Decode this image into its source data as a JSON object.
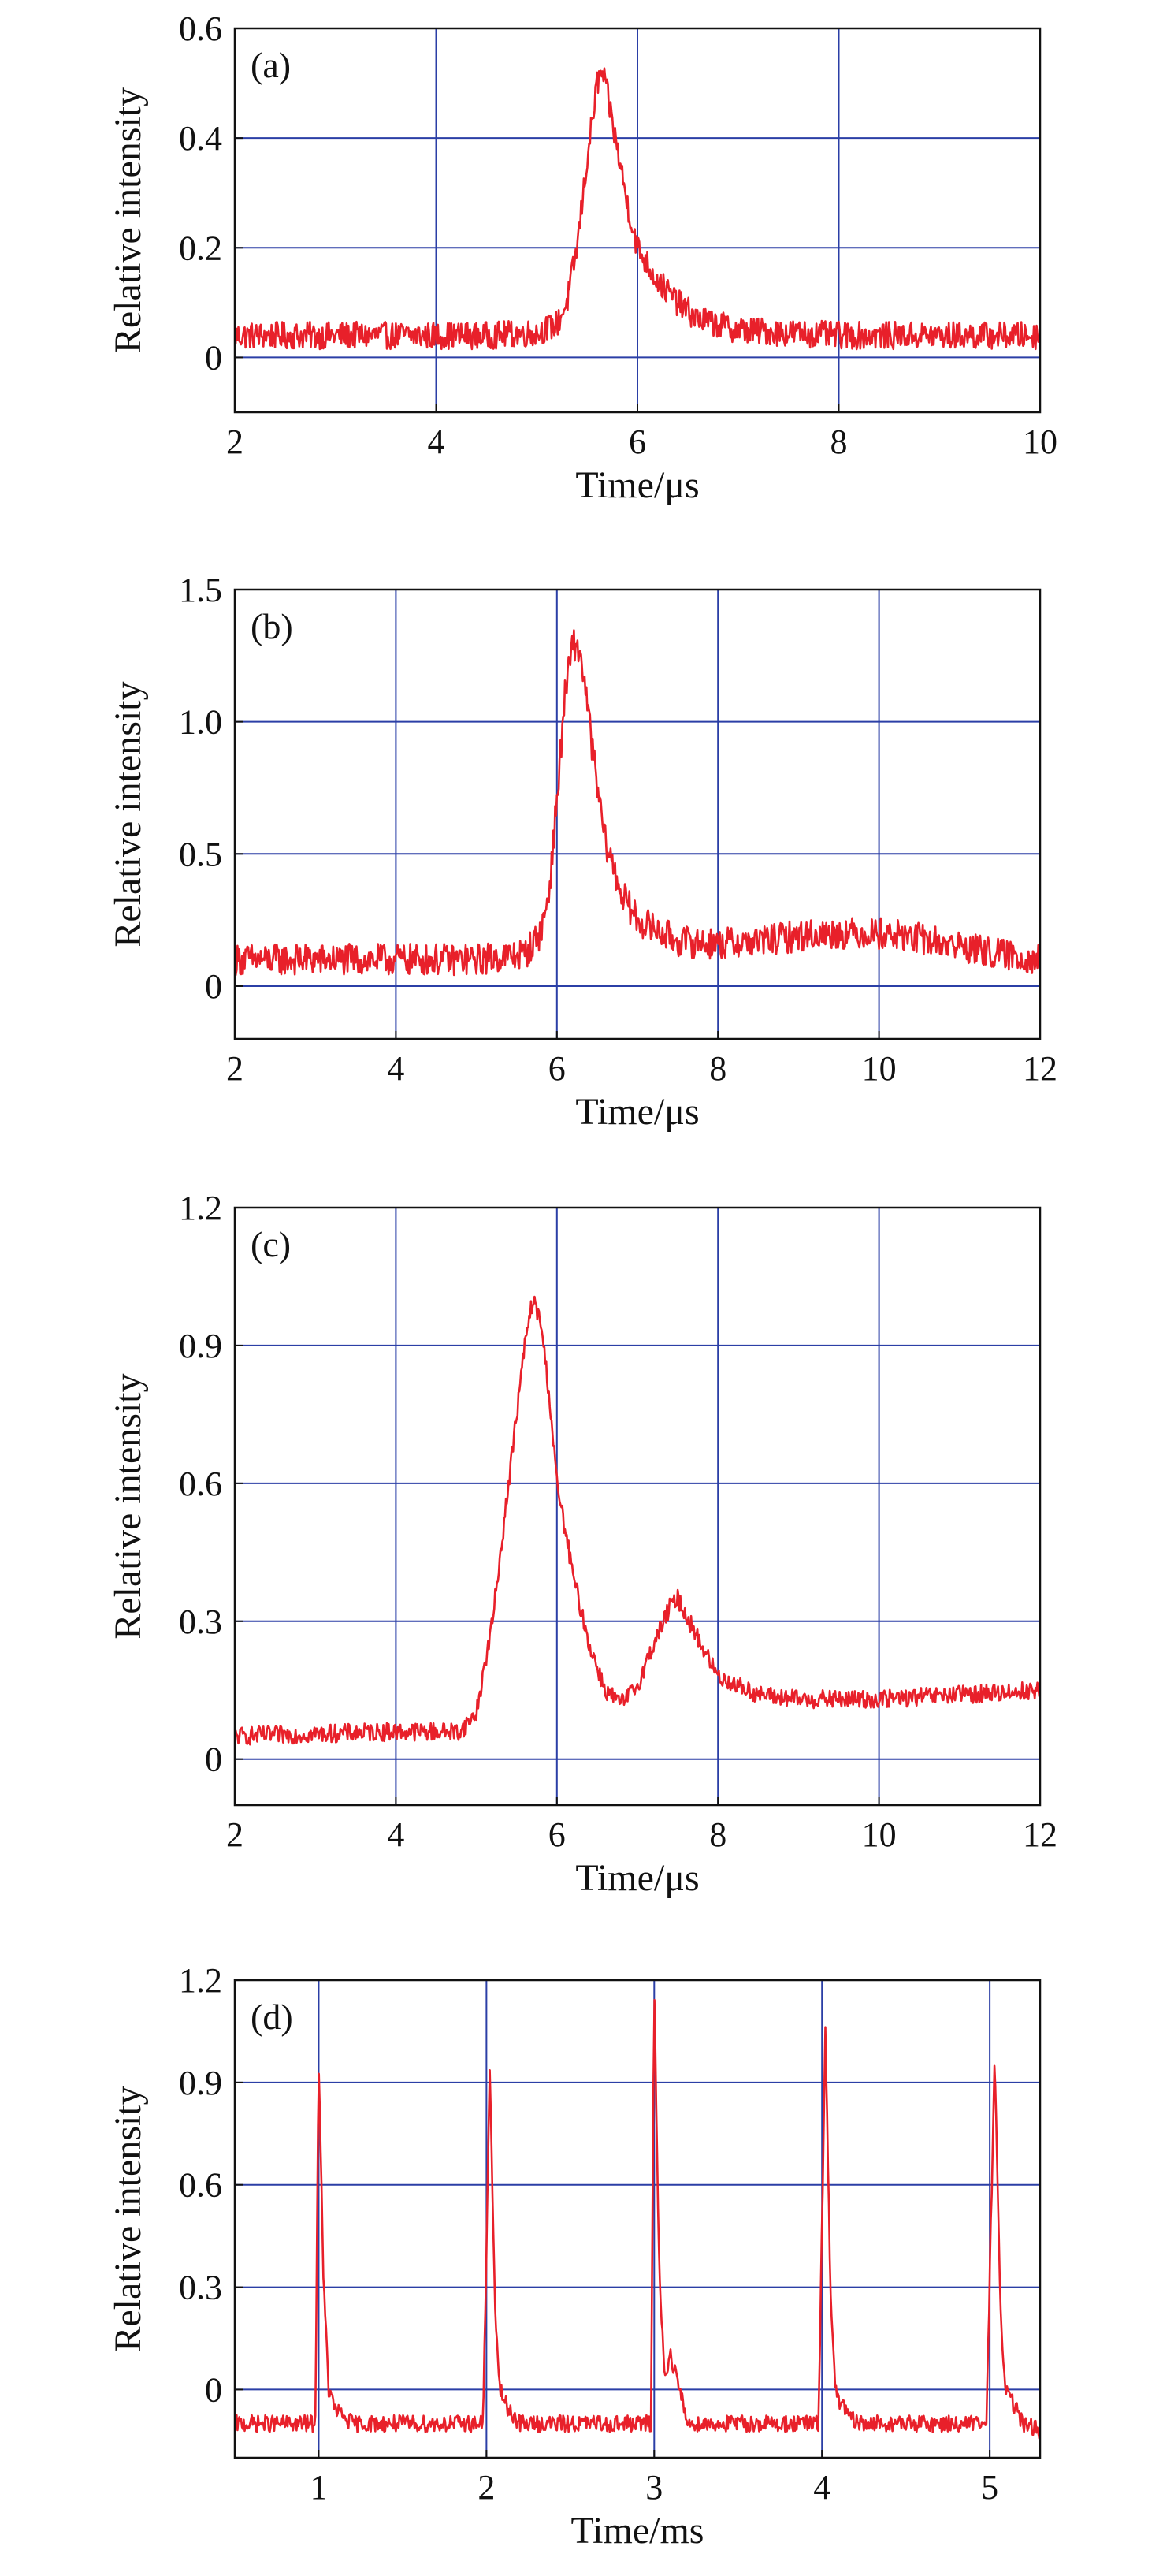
{
  "chart_data": [
    {
      "type": "line",
      "panel_label": "(a)",
      "xlabel": "Time/μs",
      "ylabel": "Relative intensity",
      "xlim": [
        2,
        10
      ],
      "ylim": [
        -0.1,
        0.6
      ],
      "xticks": [
        2,
        4,
        6,
        8,
        10
      ],
      "xtick_labels": [
        "2",
        "4",
        "6",
        "8",
        "10"
      ],
      "yticks": [
        0,
        0.2,
        0.4,
        0.6
      ],
      "ytick_labels": [
        "0",
        "0.2",
        "0.4",
        "0.6"
      ],
      "grid": true,
      "series": [
        {
          "color": "#e8202a",
          "x": [
            2.0,
            2.5,
            3.0,
            3.5,
            4.0,
            4.5,
            5.0,
            5.2,
            5.3,
            5.4,
            5.5,
            5.6,
            5.65,
            5.7,
            5.8,
            5.9,
            6.0,
            6.2,
            6.4,
            6.6,
            6.8,
            7.0,
            7.5,
            8.0,
            8.5,
            9.0,
            9.5,
            10.0
          ],
          "values": [
            0.04,
            0.04,
            0.04,
            0.04,
            0.04,
            0.04,
            0.045,
            0.06,
            0.1,
            0.2,
            0.36,
            0.5,
            0.52,
            0.48,
            0.38,
            0.28,
            0.2,
            0.14,
            0.1,
            0.07,
            0.06,
            0.05,
            0.045,
            0.04,
            0.04,
            0.04,
            0.04,
            0.04
          ],
          "noise": 0.025
        }
      ]
    },
    {
      "type": "line",
      "panel_label": "(b)",
      "xlabel": "Time/μs",
      "ylabel": "Relative intensity",
      "xlim": [
        2,
        12
      ],
      "ylim": [
        -0.2,
        1.5
      ],
      "xticks": [
        2,
        4,
        6,
        8,
        10,
        12
      ],
      "xtick_labels": [
        "2",
        "4",
        "6",
        "8",
        "10",
        "12"
      ],
      "yticks": [
        0,
        0.5,
        1.0,
        1.5
      ],
      "ytick_labels": [
        "0",
        "0.5",
        "1.0",
        "1.5"
      ],
      "grid": true,
      "series": [
        {
          "color": "#e8202a",
          "x": [
            2.0,
            3.0,
            4.0,
            5.0,
            5.6,
            5.8,
            5.9,
            6.0,
            6.1,
            6.2,
            6.3,
            6.4,
            6.5,
            6.6,
            6.8,
            7.0,
            7.5,
            8.0,
            8.5,
            9.0,
            9.5,
            10.0,
            10.5,
            11.0,
            11.5,
            12.0
          ],
          "values": [
            0.1,
            0.1,
            0.1,
            0.1,
            0.12,
            0.2,
            0.35,
            0.7,
            1.1,
            1.3,
            1.25,
            1.0,
            0.75,
            0.55,
            0.35,
            0.25,
            0.17,
            0.16,
            0.17,
            0.19,
            0.2,
            0.2,
            0.18,
            0.15,
            0.12,
            0.1
          ],
          "noise": 0.06
        }
      ]
    },
    {
      "type": "line",
      "panel_label": "(c)",
      "xlabel": "Time/μs",
      "ylabel": "Relative intensity",
      "xlim": [
        2,
        12
      ],
      "ylim": [
        -0.1,
        1.2
      ],
      "xticks": [
        2,
        4,
        6,
        8,
        10,
        12
      ],
      "xtick_labels": [
        "2",
        "4",
        "6",
        "8",
        "10",
        "12"
      ],
      "yticks": [
        0,
        0.3,
        0.6,
        0.9,
        1.2
      ],
      "ytick_labels": [
        "0",
        "0.3",
        "0.6",
        "0.9",
        "1.2"
      ],
      "grid": true,
      "series": [
        {
          "color": "#e8202a",
          "x": [
            2.0,
            3.0,
            4.0,
            4.8,
            5.0,
            5.2,
            5.4,
            5.6,
            5.7,
            5.8,
            5.9,
            6.0,
            6.2,
            6.4,
            6.6,
            6.8,
            7.0,
            7.2,
            7.4,
            7.5,
            7.7,
            8.0,
            8.5,
            9.0,
            10.0,
            11.0,
            12.0
          ],
          "values": [
            0.05,
            0.055,
            0.06,
            0.06,
            0.1,
            0.3,
            0.6,
            0.9,
            1.0,
            0.95,
            0.8,
            0.6,
            0.4,
            0.25,
            0.15,
            0.12,
            0.16,
            0.25,
            0.33,
            0.35,
            0.28,
            0.18,
            0.14,
            0.13,
            0.13,
            0.14,
            0.15
          ],
          "noise": 0.02
        }
      ]
    },
    {
      "type": "line",
      "panel_label": "(d)",
      "xlabel": "Time/ms",
      "ylabel": "Relative intensity",
      "xlim": [
        0.5,
        5.3
      ],
      "ylim": [
        -0.2,
        1.2
      ],
      "xticks": [
        1,
        2,
        3,
        4,
        5
      ],
      "xtick_labels": [
        "1",
        "2",
        "3",
        "4",
        "5"
      ],
      "yticks": [
        0,
        0.3,
        0.6,
        0.9,
        1.2
      ],
      "ytick_labels": [
        "0",
        "0.3",
        "0.6",
        "0.9",
        "1.2"
      ],
      "grid": true,
      "series": [
        {
          "color": "#e8202a",
          "x": [
            0.5,
            0.98,
            1.0,
            1.03,
            1.06,
            1.1,
            1.2,
            1.98,
            2.02,
            2.05,
            2.08,
            2.12,
            2.2,
            2.98,
            3.0,
            3.03,
            3.06,
            3.1,
            3.15,
            3.2,
            3.98,
            4.02,
            4.05,
            4.08,
            4.12,
            4.2,
            4.98,
            5.03,
            5.06,
            5.09,
            5.13,
            5.2,
            5.3
          ],
          "values": [
            -0.1,
            -0.1,
            0.98,
            0.3,
            0.0,
            -0.06,
            -0.1,
            -0.1,
            0.94,
            0.25,
            0.0,
            -0.05,
            -0.1,
            -0.1,
            1.17,
            0.35,
            0.05,
            0.1,
            0.0,
            -0.1,
            -0.1,
            1.06,
            0.3,
            0.0,
            -0.05,
            -0.1,
            -0.1,
            0.98,
            0.3,
            0.0,
            -0.03,
            -0.1,
            -0.12
          ],
          "noise": 0.025
        }
      ]
    }
  ]
}
